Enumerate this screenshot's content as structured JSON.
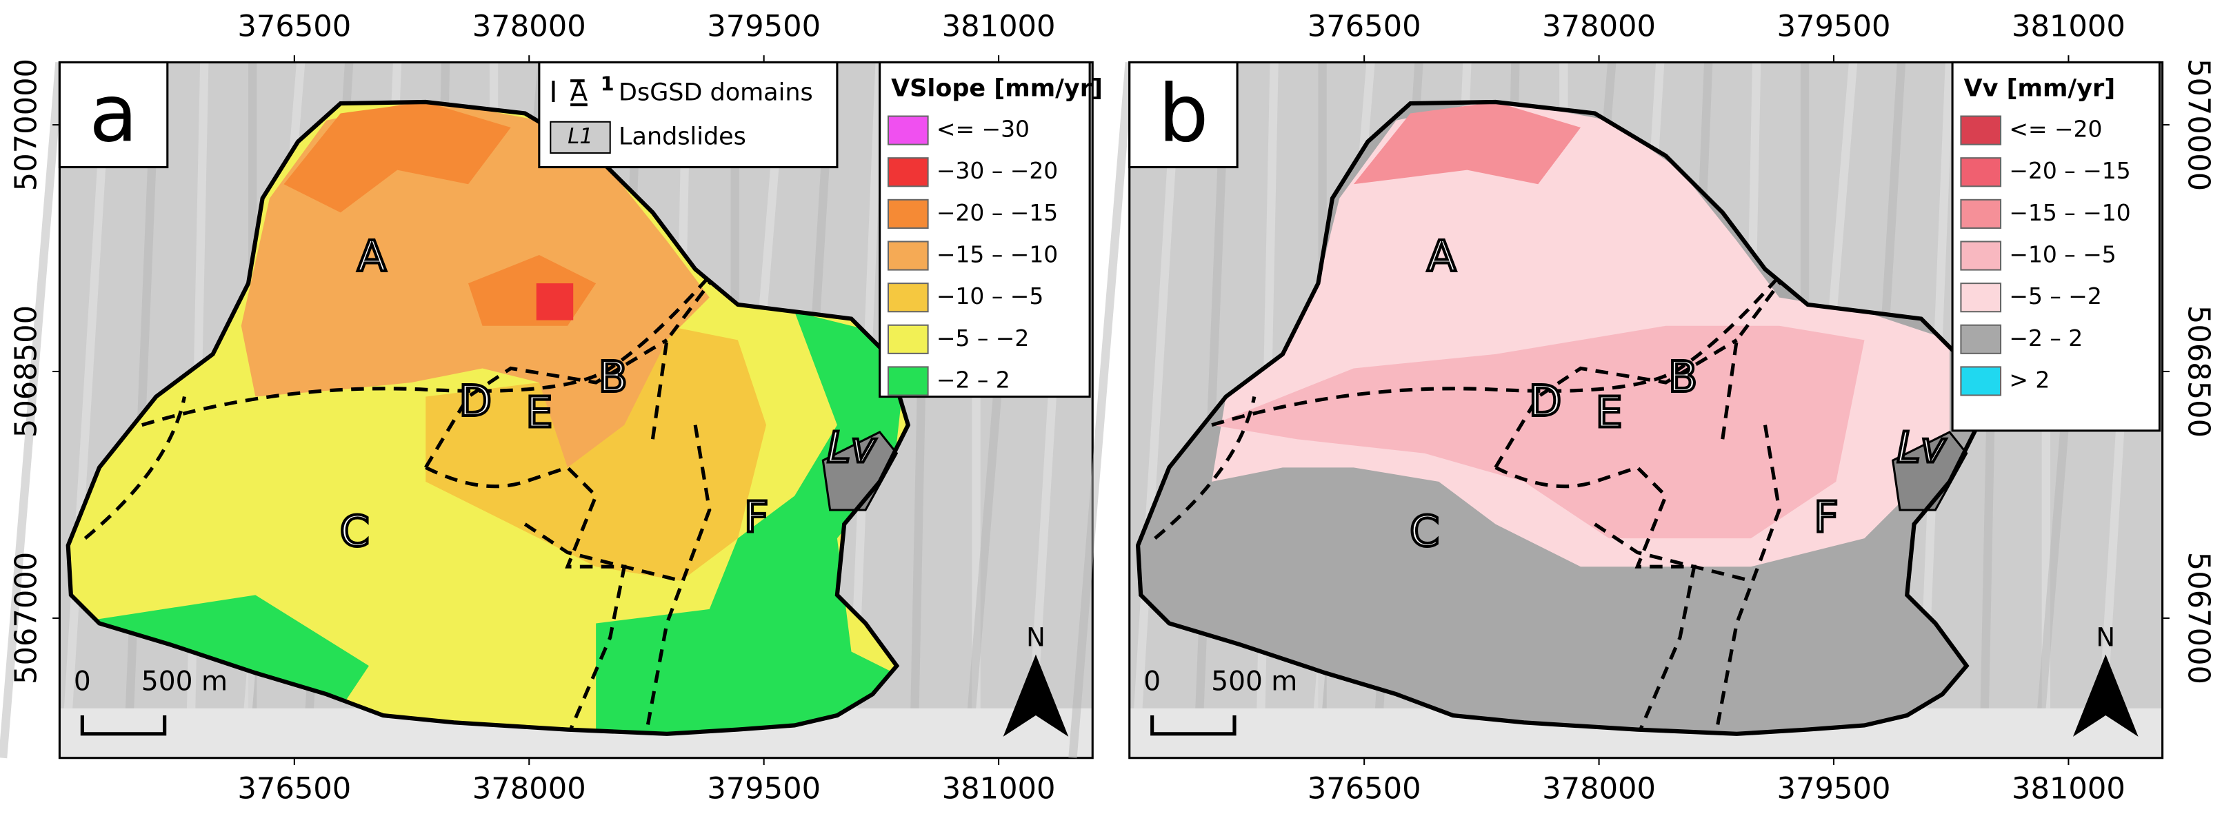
{
  "axes": {
    "xlim": [
      375000,
      381600
    ],
    "ylim": [
      5066150,
      5070380
    ],
    "xticks": [
      376500,
      378000,
      379500,
      381000
    ],
    "yticks": [
      5067000,
      5068500,
      5070000
    ]
  },
  "panels": [
    {
      "label": "a",
      "legend": {
        "title": "VSlope [mm/yr]",
        "items": [
          {
            "label": "<= −30",
            "color": "#f050f0"
          },
          {
            "label": "−30 – −20",
            "color": "#f03535"
          },
          {
            "label": "−20 – −15",
            "color": "#f58a35"
          },
          {
            "label": "−15 – −10",
            "color": "#f5aa55"
          },
          {
            "label": "−10 – −5",
            "color": "#f5c840"
          },
          {
            "label": "−5 – −2",
            "color": "#f2f055"
          },
          {
            "label": "−2 – 2",
            "color": "#25e055"
          }
        ]
      },
      "domains": [
        "A",
        "B",
        "C",
        "D",
        "E",
        "F"
      ],
      "landslide": "Lv"
    },
    {
      "label": "b",
      "legend": {
        "title": "Vv [mm/yr]",
        "items": [
          {
            "label": "<= −20",
            "color": "#d94050"
          },
          {
            "label": "−20 – −15",
            "color": "#f06070"
          },
          {
            "label": "−15 – −10",
            "color": "#f59098"
          },
          {
            "label": "−10 – −5",
            "color": "#f8b8c0"
          },
          {
            "label": "−5 – −2",
            "color": "#fcd8dc"
          },
          {
            "label": "−2 – 2",
            "color": "#a8a8a8"
          },
          {
            "label": "> 2",
            "color": "#20d8f0"
          }
        ]
      },
      "domains": [
        "A",
        "B",
        "C",
        "D",
        "E",
        "F"
      ],
      "landslide": "Lv"
    }
  ],
  "key": {
    "domain_symbol": "A",
    "domain_index": "1",
    "domains": "DsGSD domains",
    "landslide_symbol": "L1",
    "landslides": "Landslides"
  },
  "scale_bar": {
    "start": "0",
    "end": "500 m"
  },
  "north": "N"
}
